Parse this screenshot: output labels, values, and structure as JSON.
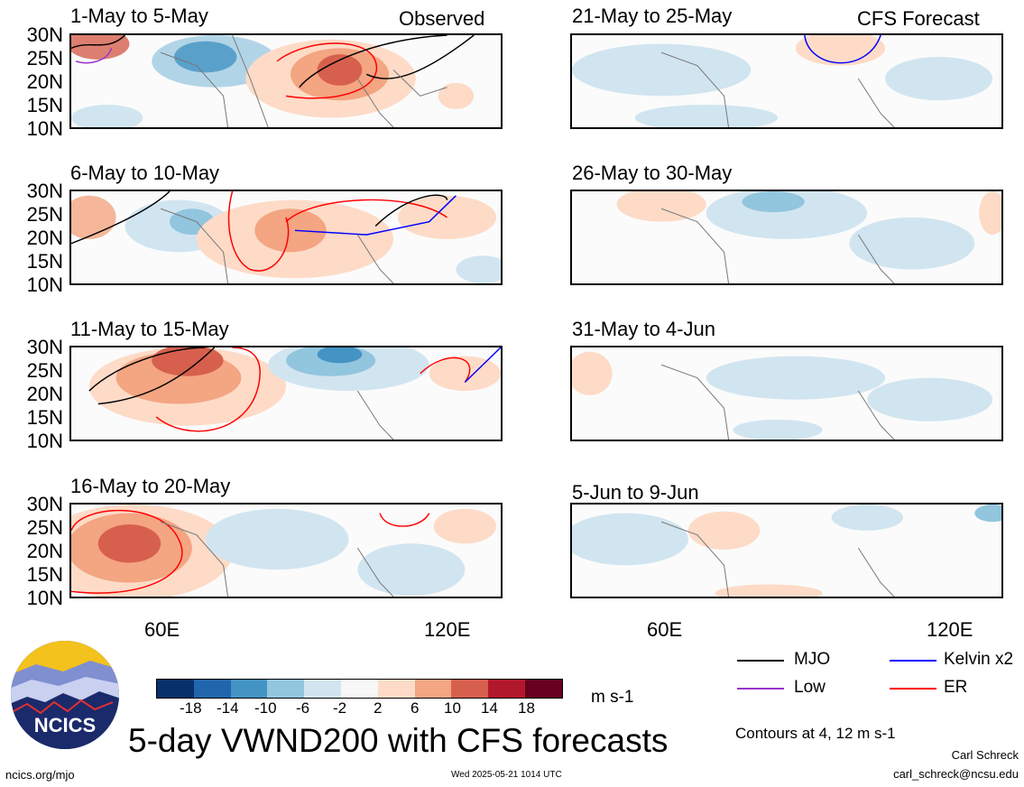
{
  "panels": [
    {
      "id": "obs1",
      "title": "1-May to 5-May",
      "tag": "Observed"
    },
    {
      "id": "obs2",
      "title": "6-May to 10-May",
      "tag": ""
    },
    {
      "id": "obs3",
      "title": "11-May to 15-May",
      "tag": ""
    },
    {
      "id": "obs4",
      "title": "16-May to 20-May",
      "tag": ""
    },
    {
      "id": "fc1",
      "title": "21-May to 25-May",
      "tag": "CFS Forecast"
    },
    {
      "id": "fc2",
      "title": "26-May to 30-May",
      "tag": ""
    },
    {
      "id": "fc3",
      "title": "31-May to 4-Jun",
      "tag": ""
    },
    {
      "id": "fc4",
      "title": "5-Jun to 9-Jun",
      "tag": ""
    }
  ],
  "lat_labels": [
    "30N",
    "25N",
    "20N",
    "15N",
    "10N"
  ],
  "lon_labels": [
    "60E",
    "120E"
  ],
  "colorbar": {
    "colors": [
      "#08306b",
      "#2166ac",
      "#4393c3",
      "#92c5de",
      "#d1e5f0",
      "#f7f7f7",
      "#fddbc7",
      "#f4a582",
      "#d6604d",
      "#b2182b",
      "#67001f"
    ],
    "labels": [
      "-18",
      "-14",
      "-10",
      "-6",
      "-2",
      "2",
      "6",
      "10",
      "14",
      "18"
    ],
    "units": "m s-1"
  },
  "legend": [
    {
      "label": "MJO",
      "color": "#000000"
    },
    {
      "label": "Kelvin x2",
      "color": "#0000ff"
    },
    {
      "label": "Low",
      "color": "#9933cc"
    },
    {
      "label": "ER",
      "color": "#ff0000"
    }
  ],
  "contour_note": "Contours at 4, 12 m s-1",
  "title": "5-day VWND200 with CFS forecasts",
  "logo_text": "NCICS",
  "footer": {
    "left": "ncics.org/mjo",
    "center": "Wed 2025-05-21 1014 UTC",
    "author": "Carl Schreck",
    "email": "carl_schreck@ncsu.edu"
  }
}
